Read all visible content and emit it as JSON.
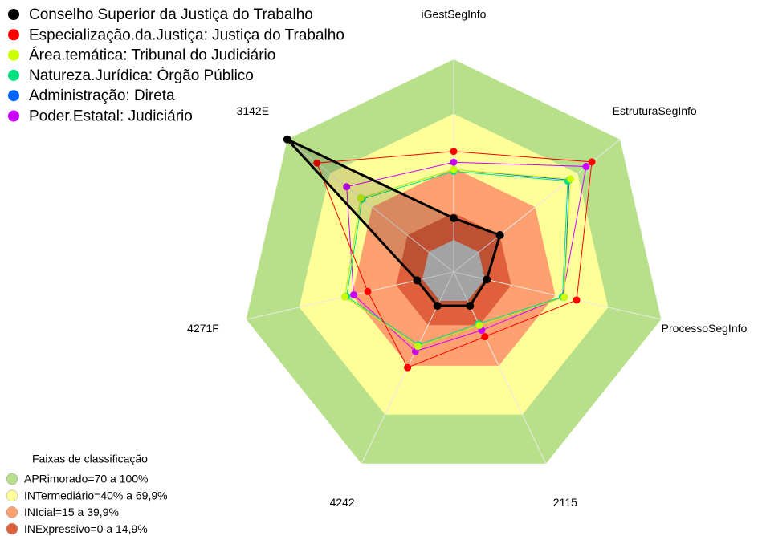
{
  "chart_data": {
    "type": "radar",
    "categories": [
      "iGestSegInfo",
      "EstruturaSegInfo",
      "ProcessoSegInfo",
      "2115",
      "4242",
      "4271F",
      "3142E"
    ],
    "rlim": [
      0,
      100
    ],
    "series": [
      {
        "name": "Conselho Superior da Justiça do Trabalho",
        "color": "#000000",
        "values": [
          12,
          15,
          1,
          3,
          3,
          3,
          100
        ]
      },
      {
        "name": "Especialização.da.Justiça: Justiça do Trabalho",
        "color": "#ff0000",
        "values": [
          49,
          80,
          52,
          22,
          41,
          31,
          79
        ]
      },
      {
        "name": "Área.temática: Tribunal do Judiciário",
        "color": "#ccff00",
        "values": [
          39,
          65,
          45,
          15,
          28,
          44,
          48
        ]
      },
      {
        "name": "Natureza.Jurídica: Órgão Público",
        "color": "#00e080",
        "values": [
          38,
          63,
          44,
          14,
          27,
          43,
          47
        ]
      },
      {
        "name": "Administração: Direta",
        "color": "#0066ff",
        "values": [
          39,
          64,
          45,
          15,
          28,
          44,
          48
        ]
      },
      {
        "name": "Poder.Estatal: Judiciário",
        "color": "#cc00ff",
        "values": [
          43,
          76,
          44,
          18,
          31,
          39,
          58
        ]
      }
    ],
    "bands_title": "Faixas de classificação",
    "bands": [
      {
        "label": "APRimorado=70 a 100%",
        "from": 70,
        "to": 100,
        "color": "#b8e08a"
      },
      {
        "label": "INTermediário=40% a 69,9%",
        "from": 40,
        "to": 69.9,
        "color": "#ffff99"
      },
      {
        "label": "INIcial=15 a 39,9%",
        "from": 15,
        "to": 39.9,
        "color": "#ffa070"
      },
      {
        "label": "INExpressivo=0 a 14,9%",
        "from": 0,
        "to": 14.9,
        "color": "#e0603c"
      }
    ]
  }
}
